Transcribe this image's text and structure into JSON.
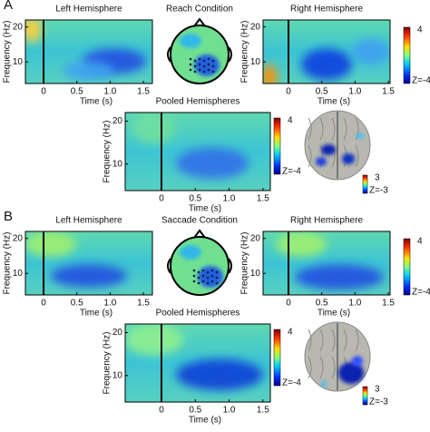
{
  "panels": [
    {
      "label": "A",
      "left_title": "Left Hemisphere",
      "condition": "Reach Condition",
      "right_title": "Right Hemisphere",
      "pooled_title": "Pooled Hemispheres",
      "heatmap_colorbar": {
        "max": "4",
        "min": "Z=-4"
      },
      "brain_colorbar": {
        "max": "3",
        "min": "Z=-3"
      }
    },
    {
      "label": "B",
      "left_title": "Left Hemisphere",
      "condition": "Saccade Condition",
      "right_title": "Right Hemisphere",
      "pooled_title": "Pooled Hemispheres",
      "heatmap_colorbar": {
        "max": "4",
        "min": "Z=-4"
      },
      "brain_colorbar": {
        "max": "3",
        "min": "Z=-3"
      }
    }
  ],
  "axes": {
    "ylabel": "Frequency (Hz)",
    "xlabel": "Time (s)",
    "yticks": [
      "20",
      "10"
    ],
    "xticks": [
      "0",
      "0.5",
      "1.0",
      "1.5"
    ]
  }
}
